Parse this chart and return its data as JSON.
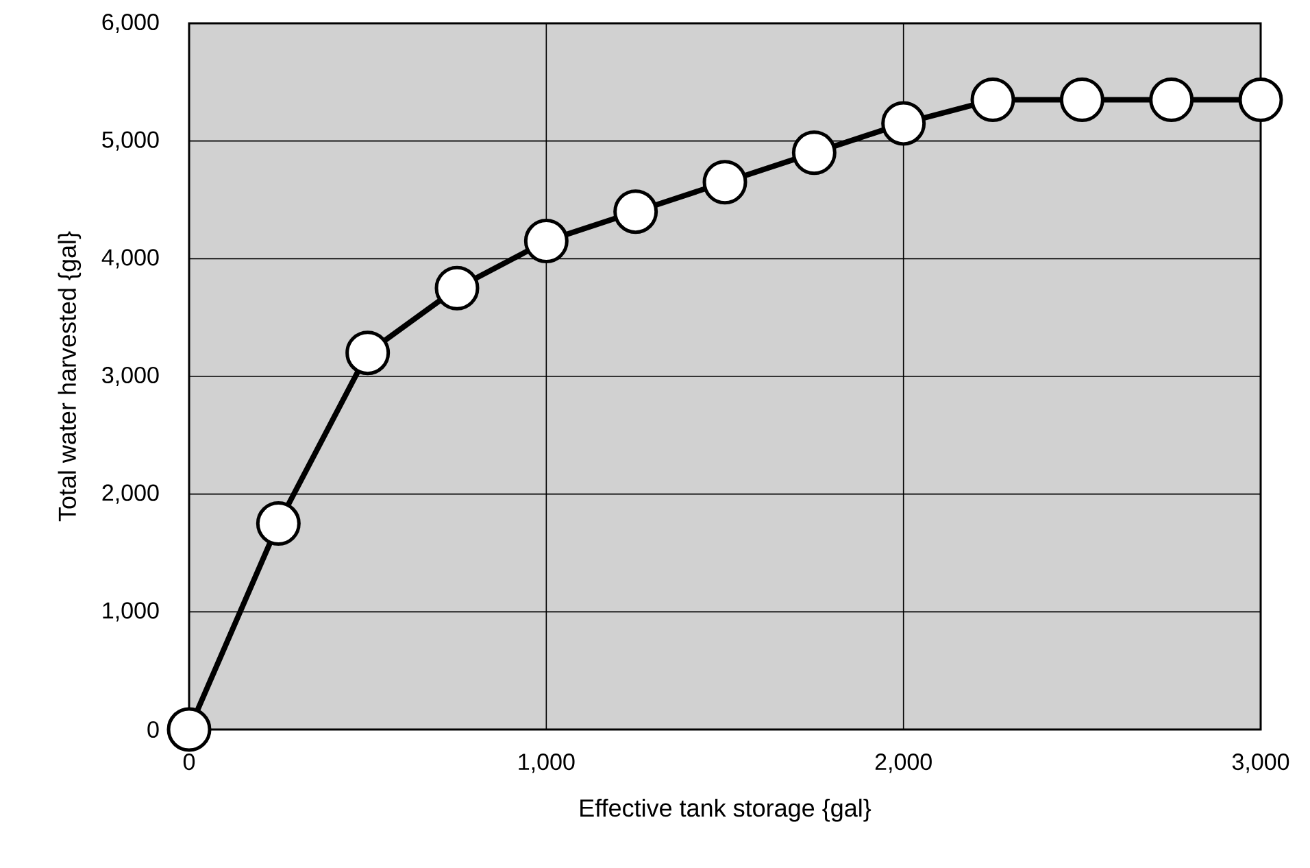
{
  "chart_data": {
    "type": "line",
    "xlabel": "Effective tank storage {gal}",
    "ylabel": "Total water harvested {gal}",
    "x": [
      0,
      250,
      500,
      750,
      1000,
      1250,
      1500,
      1750,
      2000,
      2250,
      2500,
      2750,
      3000
    ],
    "series": [
      {
        "color": "#000000",
        "values": [
          0,
          1750,
          3200,
          3750,
          4150,
          4400,
          4650,
          4900,
          5150,
          5350,
          5350,
          5350,
          5350
        ]
      }
    ],
    "xlim": [
      0,
      3000
    ],
    "ylim": [
      0,
      6000
    ],
    "xticks": [
      {
        "value": 0,
        "label": "0"
      },
      {
        "value": 1000,
        "label": "1,000"
      },
      {
        "value": 2000,
        "label": "2,000"
      },
      {
        "value": 3000,
        "label": "3,000"
      }
    ],
    "yticks": [
      {
        "value": 0,
        "label": "0"
      },
      {
        "value": 1000,
        "label": "1,000"
      },
      {
        "value": 2000,
        "label": "2,000"
      },
      {
        "value": 3000,
        "label": "3,000"
      },
      {
        "value": 4000,
        "label": "4,000"
      },
      {
        "value": 5000,
        "label": "5,000"
      },
      {
        "value": 6000,
        "label": "6,000"
      }
    ],
    "grid": true,
    "marker": "circle",
    "line_style": "solid"
  }
}
